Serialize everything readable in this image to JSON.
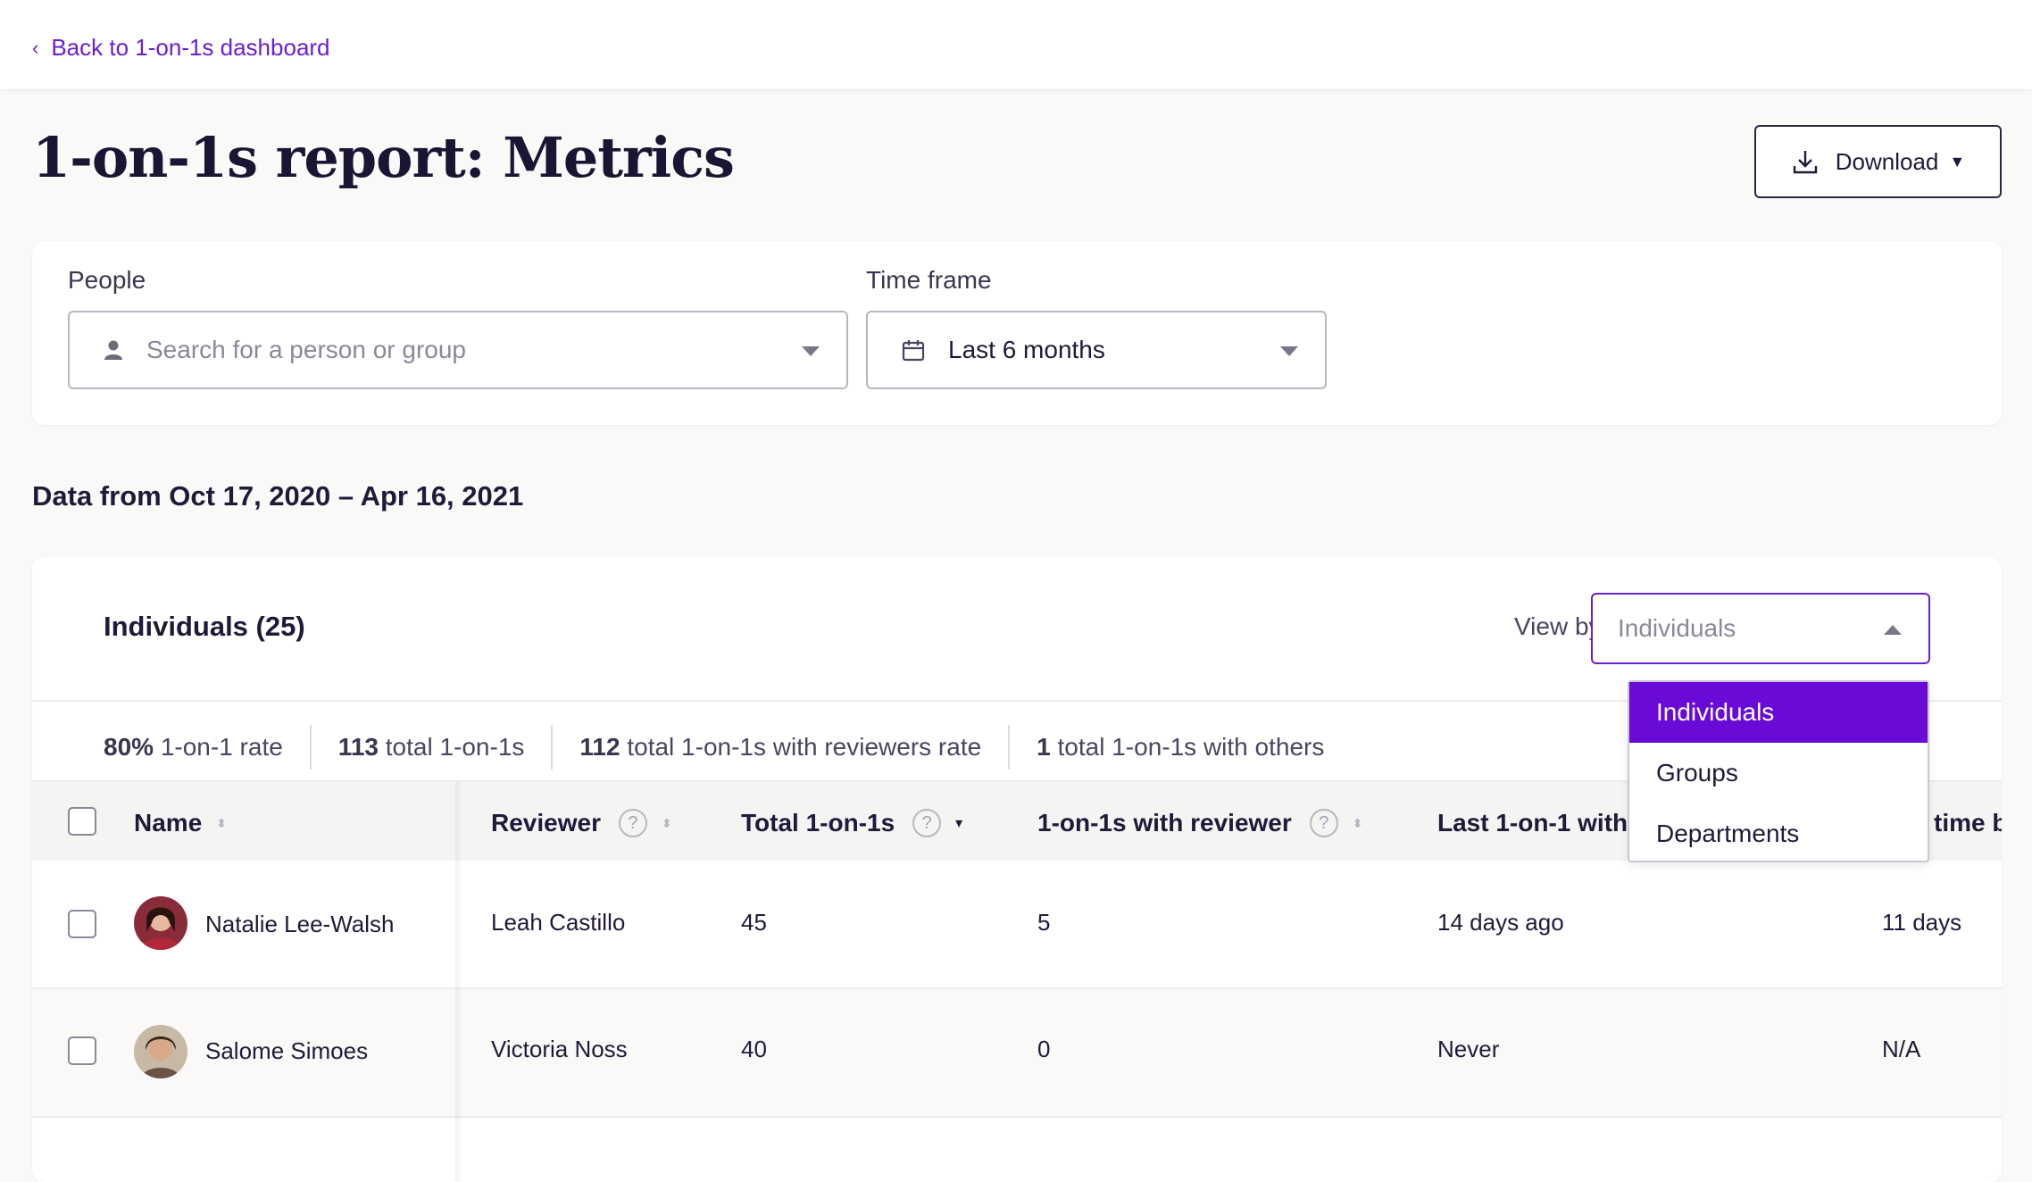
{
  "topbar": {
    "back_label": "Back to 1-on-1s dashboard"
  },
  "page": {
    "title": "1-on-1s report: Metrics"
  },
  "download": {
    "label": "Download"
  },
  "filters": {
    "people_label": "People",
    "people_placeholder": "Search for a person or group",
    "timeframe_label": "Time frame",
    "timeframe_value": "Last 6 months"
  },
  "date_range": "Data from Oct 17, 2020 – Apr 16, 2021",
  "table": {
    "title": "Individuals (25)",
    "viewby_label": "View by:",
    "viewby_value": "Individuals",
    "viewby_options": [
      "Individuals",
      "Groups",
      "Departments"
    ],
    "stats": [
      {
        "value": "80%",
        "label": "1-on-1 rate"
      },
      {
        "value": "113",
        "label": "total 1-on-1s"
      },
      {
        "value": "112",
        "label": "total 1-on-1s with reviewers rate"
      },
      {
        "value": "1",
        "label": "total 1-on-1s with others"
      }
    ],
    "columns": {
      "name": "Name",
      "reviewer": "Reviewer",
      "total": "Total 1-on-1s",
      "with_reviewer": "1-on-1s with reviewer",
      "last": "Last 1-on-1 with",
      "time": "time b"
    },
    "rows": [
      {
        "name": "Natalie Lee-Walsh",
        "reviewer": "Leah Castillo",
        "total": "45",
        "with_reviewer": "5",
        "last": "14 days ago",
        "time": "11 days"
      },
      {
        "name": "Salome Simoes",
        "reviewer": "Victoria Noss",
        "total": "40",
        "with_reviewer": "0",
        "last": "Never",
        "time": "N/A"
      }
    ]
  },
  "colors": {
    "accent": "#6a1fd0",
    "selected_option": "#6a0ad6",
    "title": "#1a1533"
  },
  "icons": [
    "chevron-left-icon",
    "download-icon",
    "caret-down-icon",
    "person-icon",
    "calendar-icon",
    "help-icon",
    "sort-icon"
  ]
}
